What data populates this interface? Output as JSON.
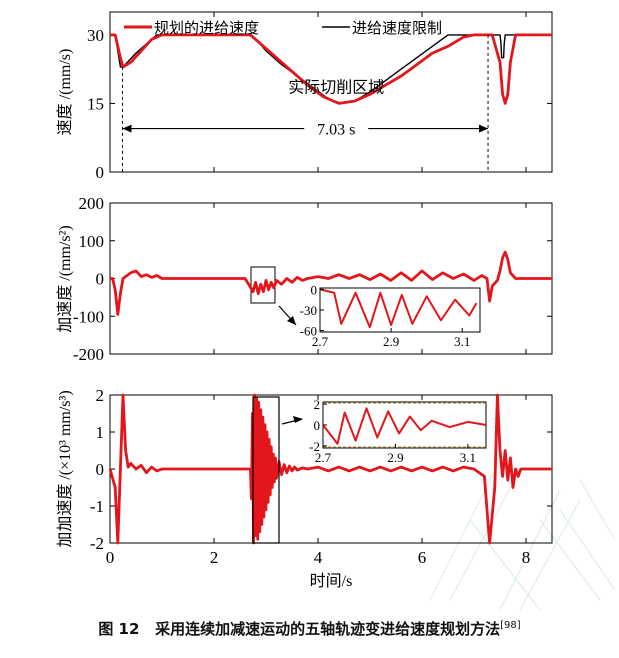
{
  "figure": {
    "caption_prefix": "图 12",
    "caption_text": "采用连续加减速运动的五轴轨迹变进给速度规划方法",
    "caption_ref": "[98]"
  },
  "colors": {
    "red": "#e3161b",
    "black": "#000000",
    "watermark": "#dff0df"
  },
  "chart_data": [
    {
      "type": "line",
      "ylabel": "速度 /(mm/s)",
      "yticks": [
        0,
        15,
        30
      ],
      "ylim": [
        0,
        35
      ],
      "xlim": [
        0,
        8.5
      ],
      "legend": "top",
      "series": [
        {
          "name": "规划的进给速度",
          "color": "#e3161b",
          "x": [
            0,
            0.1,
            0.2,
            0.25,
            0.4,
            0.6,
            0.8,
            1.0,
            1.2,
            1.4,
            2.0,
            2.7,
            2.85,
            3.0,
            3.2,
            3.5,
            3.8,
            4.1,
            4.4,
            4.7,
            5.0,
            5.3,
            5.6,
            5.9,
            6.2,
            6.5,
            6.8,
            7.0,
            7.15,
            7.28,
            7.35,
            7.5,
            7.55,
            7.6,
            7.65,
            7.7,
            7.8,
            8.5
          ],
          "y": [
            30,
            30,
            25,
            23,
            24,
            26.5,
            29,
            30,
            30,
            30,
            30,
            30,
            28.5,
            27,
            25,
            22,
            19,
            16.5,
            15,
            15.5,
            17,
            19,
            21,
            23.5,
            26,
            27.5,
            29.5,
            30,
            30,
            30,
            30,
            24,
            17,
            15,
            17,
            24,
            30,
            30
          ]
        },
        {
          "name": "进给速度限制",
          "color": "#000000",
          "x": [
            0,
            0.1,
            0.2,
            0.25,
            0.5,
            0.75,
            0.9,
            1.4,
            2.0,
            2.7,
            2.85,
            3.0,
            3.3,
            3.6,
            3.9,
            4.2,
            4.45,
            4.7,
            5.0,
            5.3,
            5.6,
            5.9,
            6.2,
            6.5,
            6.8,
            7.0,
            7.15,
            7.5,
            7.52,
            7.53,
            7.57,
            7.58,
            7.6,
            8.5
          ],
          "y": [
            30,
            30,
            23,
            23,
            26,
            28.5,
            30,
            30,
            30,
            30,
            28.5,
            26.5,
            23.5,
            21,
            18.5,
            16,
            15,
            15.5,
            17.5,
            20,
            22.5,
            25,
            27.5,
            30,
            30,
            30,
            30,
            30,
            28,
            25,
            25,
            28,
            30,
            30
          ]
        }
      ],
      "annotations": [
        {
          "text": "实际切削区域",
          "x": 4.35,
          "y": 20.5
        },
        {
          "text": "7.03 s",
          "x": 4.35,
          "y": 9.5
        }
      ],
      "interval": {
        "x1": 0.24,
        "x2": 7.27,
        "y": 9.5
      }
    },
    {
      "type": "line",
      "ylabel": "加速度 /(mm/s²)",
      "yticks": [
        -200,
        -100,
        0,
        100,
        200
      ],
      "ylim": [
        -200,
        200
      ],
      "xlim": [
        0,
        8.5
      ],
      "series": [
        {
          "name": "",
          "color": "#e3161b",
          "x": [
            0,
            0.05,
            0.1,
            0.15,
            0.2,
            0.25,
            0.3,
            0.4,
            0.5,
            0.6,
            0.7,
            0.8,
            0.9,
            1.0,
            1.1,
            2.6,
            2.75,
            2.8,
            2.85,
            2.9,
            2.95,
            3.0,
            3.05,
            3.1,
            3.15,
            3.2,
            3.3,
            3.4,
            3.5,
            3.6,
            3.7,
            3.8,
            4.0,
            4.2,
            4.4,
            4.6,
            4.8,
            5.0,
            5.2,
            5.4,
            5.6,
            5.8,
            6.0,
            6.2,
            6.4,
            6.6,
            6.8,
            7.0,
            7.15,
            7.25,
            7.3,
            7.35,
            7.45,
            7.5,
            7.55,
            7.6,
            7.65,
            7.7,
            7.8,
            7.9,
            8.5
          ],
          "y": [
            0,
            0,
            -30,
            -95,
            -40,
            0,
            5,
            15,
            20,
            5,
            10,
            3,
            8,
            0,
            0,
            0,
            -35,
            -10,
            -40,
            -15,
            -35,
            -5,
            -30,
            -10,
            -25,
            -5,
            -15,
            0,
            -10,
            3,
            -5,
            0,
            5,
            0,
            10,
            0,
            10,
            -3,
            12,
            -5,
            15,
            -5,
            20,
            -3,
            15,
            0,
            12,
            -5,
            8,
            0,
            -60,
            -20,
            -5,
            20,
            55,
            70,
            50,
            15,
            0,
            0,
            0
          ]
        }
      ],
      "inset": {
        "x": [
          2.7,
          2.74,
          2.76,
          2.8,
          2.84,
          2.87,
          2.9,
          2.93,
          2.96,
          3.0,
          3.04,
          3.08,
          3.12,
          3.14
        ],
        "y": [
          0,
          -5,
          -50,
          -5,
          -55,
          -5,
          -52,
          -8,
          -50,
          -10,
          -45,
          -15,
          -38,
          -20
        ],
        "xticks": [
          "2.7",
          "2.9",
          "3.1"
        ],
        "yticks": [
          "0",
          "-30",
          "-60"
        ]
      }
    },
    {
      "type": "line",
      "ylabel": "加加速度 /(×10³ mm/s³)",
      "yticks": [
        -2,
        -1,
        0,
        1,
        2
      ],
      "xticks": [
        0,
        2,
        4,
        6,
        8
      ],
      "xlabel": "时间/s",
      "ylim": [
        -2,
        2
      ],
      "xlim": [
        0,
        8.5
      ],
      "series": [
        {
          "name": "",
          "color": "#e3161b",
          "x": [
            0,
            0.1,
            0.15,
            0.2,
            0.25,
            0.3,
            0.35,
            0.4,
            0.5,
            0.6,
            0.7,
            0.8,
            0.9,
            1.0,
            1.1,
            2.7,
            2.72,
            2.74,
            2.76,
            2.78,
            2.8,
            2.82,
            2.84,
            2.86,
            2.88,
            2.9,
            2.92,
            2.94,
            2.96,
            2.98,
            3.0,
            3.02,
            3.04,
            3.06,
            3.08,
            3.1,
            3.12,
            3.14,
            3.16,
            3.18,
            3.2,
            3.25,
            3.3,
            3.35,
            3.4,
            3.45,
            3.5,
            3.55,
            3.6,
            3.7,
            3.8,
            4.0,
            4.2,
            4.4,
            4.6,
            4.8,
            5.0,
            5.2,
            5.4,
            5.6,
            5.8,
            6.0,
            6.2,
            6.4,
            6.6,
            6.8,
            7.0,
            7.2,
            7.3,
            7.4,
            7.45,
            7.5,
            7.55,
            7.6,
            7.65,
            7.7,
            7.75,
            7.8,
            7.85,
            7.9,
            8.0,
            8.5
          ],
          "y": [
            0,
            -0.5,
            -2,
            0,
            2,
            0.5,
            0.05,
            0.15,
            0,
            0.1,
            -0.1,
            0.05,
            -0.05,
            0,
            0,
            0,
            -0.8,
            1.5,
            -2,
            2,
            -1.8,
            1.9,
            -1.9,
            1.8,
            -1.7,
            1.6,
            -1.5,
            1.4,
            -1.3,
            1.2,
            -1.1,
            1.0,
            -0.9,
            0.8,
            -0.7,
            0.6,
            -0.5,
            0.4,
            -0.35,
            0.3,
            -0.25,
            0.2,
            -0.15,
            0.12,
            -0.1,
            0.08,
            -0.05,
            0.05,
            -0.03,
            0.03,
            0,
            0.05,
            -0.05,
            0.05,
            -0.05,
            0.05,
            -0.05,
            0.05,
            -0.05,
            0.05,
            -0.05,
            0.05,
            -0.05,
            0.05,
            -0.05,
            0.05,
            0,
            -0.2,
            -2,
            -0.5,
            2,
            0.5,
            -0.2,
            0.5,
            -0.3,
            0.3,
            -0.5,
            0,
            -0.2,
            0,
            0,
            0
          ]
        }
      ],
      "inset": {
        "x": [
          2.7,
          2.74,
          2.76,
          2.79,
          2.82,
          2.85,
          2.88,
          2.91,
          2.94,
          2.97,
          3.0,
          3.05,
          3.1,
          3.15
        ],
        "y": [
          0,
          -1.8,
          1.2,
          -1.5,
          1.6,
          -1.2,
          1.3,
          -0.8,
          0.8,
          -0.5,
          0.4,
          -0.2,
          0.3,
          0
        ],
        "xticks": [
          "2.7",
          "2.9",
          "3.1"
        ],
        "yticks": [
          "2",
          "0",
          "-2"
        ]
      }
    }
  ]
}
